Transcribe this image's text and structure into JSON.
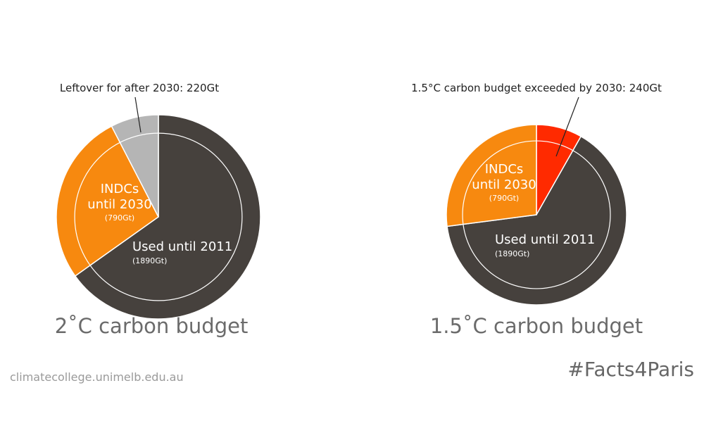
{
  "chart_data": [
    {
      "type": "pie",
      "title": "2˚C carbon budget",
      "categories": [
        "Used until 2011",
        "INDCs until 2030",
        "Leftover for after 2030: 220Gt"
      ],
      "values": [
        1890,
        790,
        220
      ],
      "value_labels": [
        "(1890Gt)",
        "(790Gt)",
        null
      ],
      "colors": [
        "#46413d",
        "#f7890f",
        "#b5b5b5"
      ]
    },
    {
      "type": "pie",
      "title": "1.5˚C carbon budget",
      "categories": [
        "1.5°C carbon budget exceeded by 2030: 240Gt",
        "Used until 2011",
        "INDCs until 2030"
      ],
      "values": [
        240,
        1890,
        790
      ],
      "value_labels": [
        null,
        "(1890Gt)",
        "(790Gt)"
      ],
      "colors": [
        "#ff2a00",
        "#46413d",
        "#f7890f"
      ]
    }
  ],
  "source": "climatecollege.unimelb.edu.au",
  "hashtag": "#Facts4Paris"
}
